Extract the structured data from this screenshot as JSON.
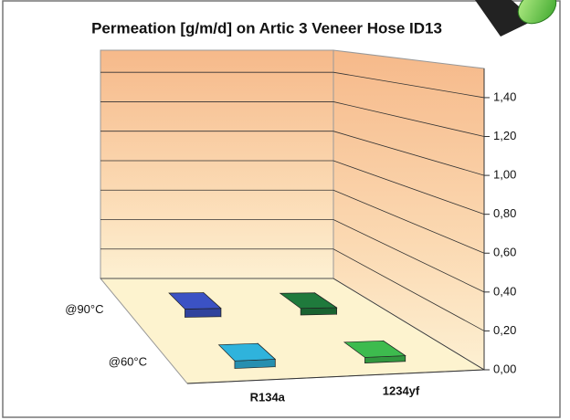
{
  "chart_data": {
    "type": "bar3d",
    "title": "Permeation [g/m/d] on Artic 3 Veneer Hose ID13",
    "categories": [
      "R134a",
      "1234yf"
    ],
    "series": [
      {
        "name": "@90°C",
        "colors": [
          "#3b52c4",
          "#1f7a3c"
        ],
        "values": [
          0.05,
          0.04
        ]
      },
      {
        "name": "@60°C",
        "colors": [
          "#2fb3dc",
          "#3dbb4e"
        ],
        "values": [
          0.04,
          0.03
        ]
      }
    ],
    "ylim": [
      0,
      1.55
    ],
    "yticks": [
      {
        "value": 0,
        "label": "0,00"
      },
      {
        "value": 0.2,
        "label": "0,20"
      },
      {
        "value": 0.4,
        "label": "0,40"
      },
      {
        "value": 0.6,
        "label": "0,60"
      },
      {
        "value": 0.8,
        "label": "0,80"
      },
      {
        "value": 1.0,
        "label": "1,00"
      },
      {
        "value": 1.2,
        "label": "1,20"
      },
      {
        "value": 1.4,
        "label": "1,40"
      }
    ],
    "grid": true
  }
}
